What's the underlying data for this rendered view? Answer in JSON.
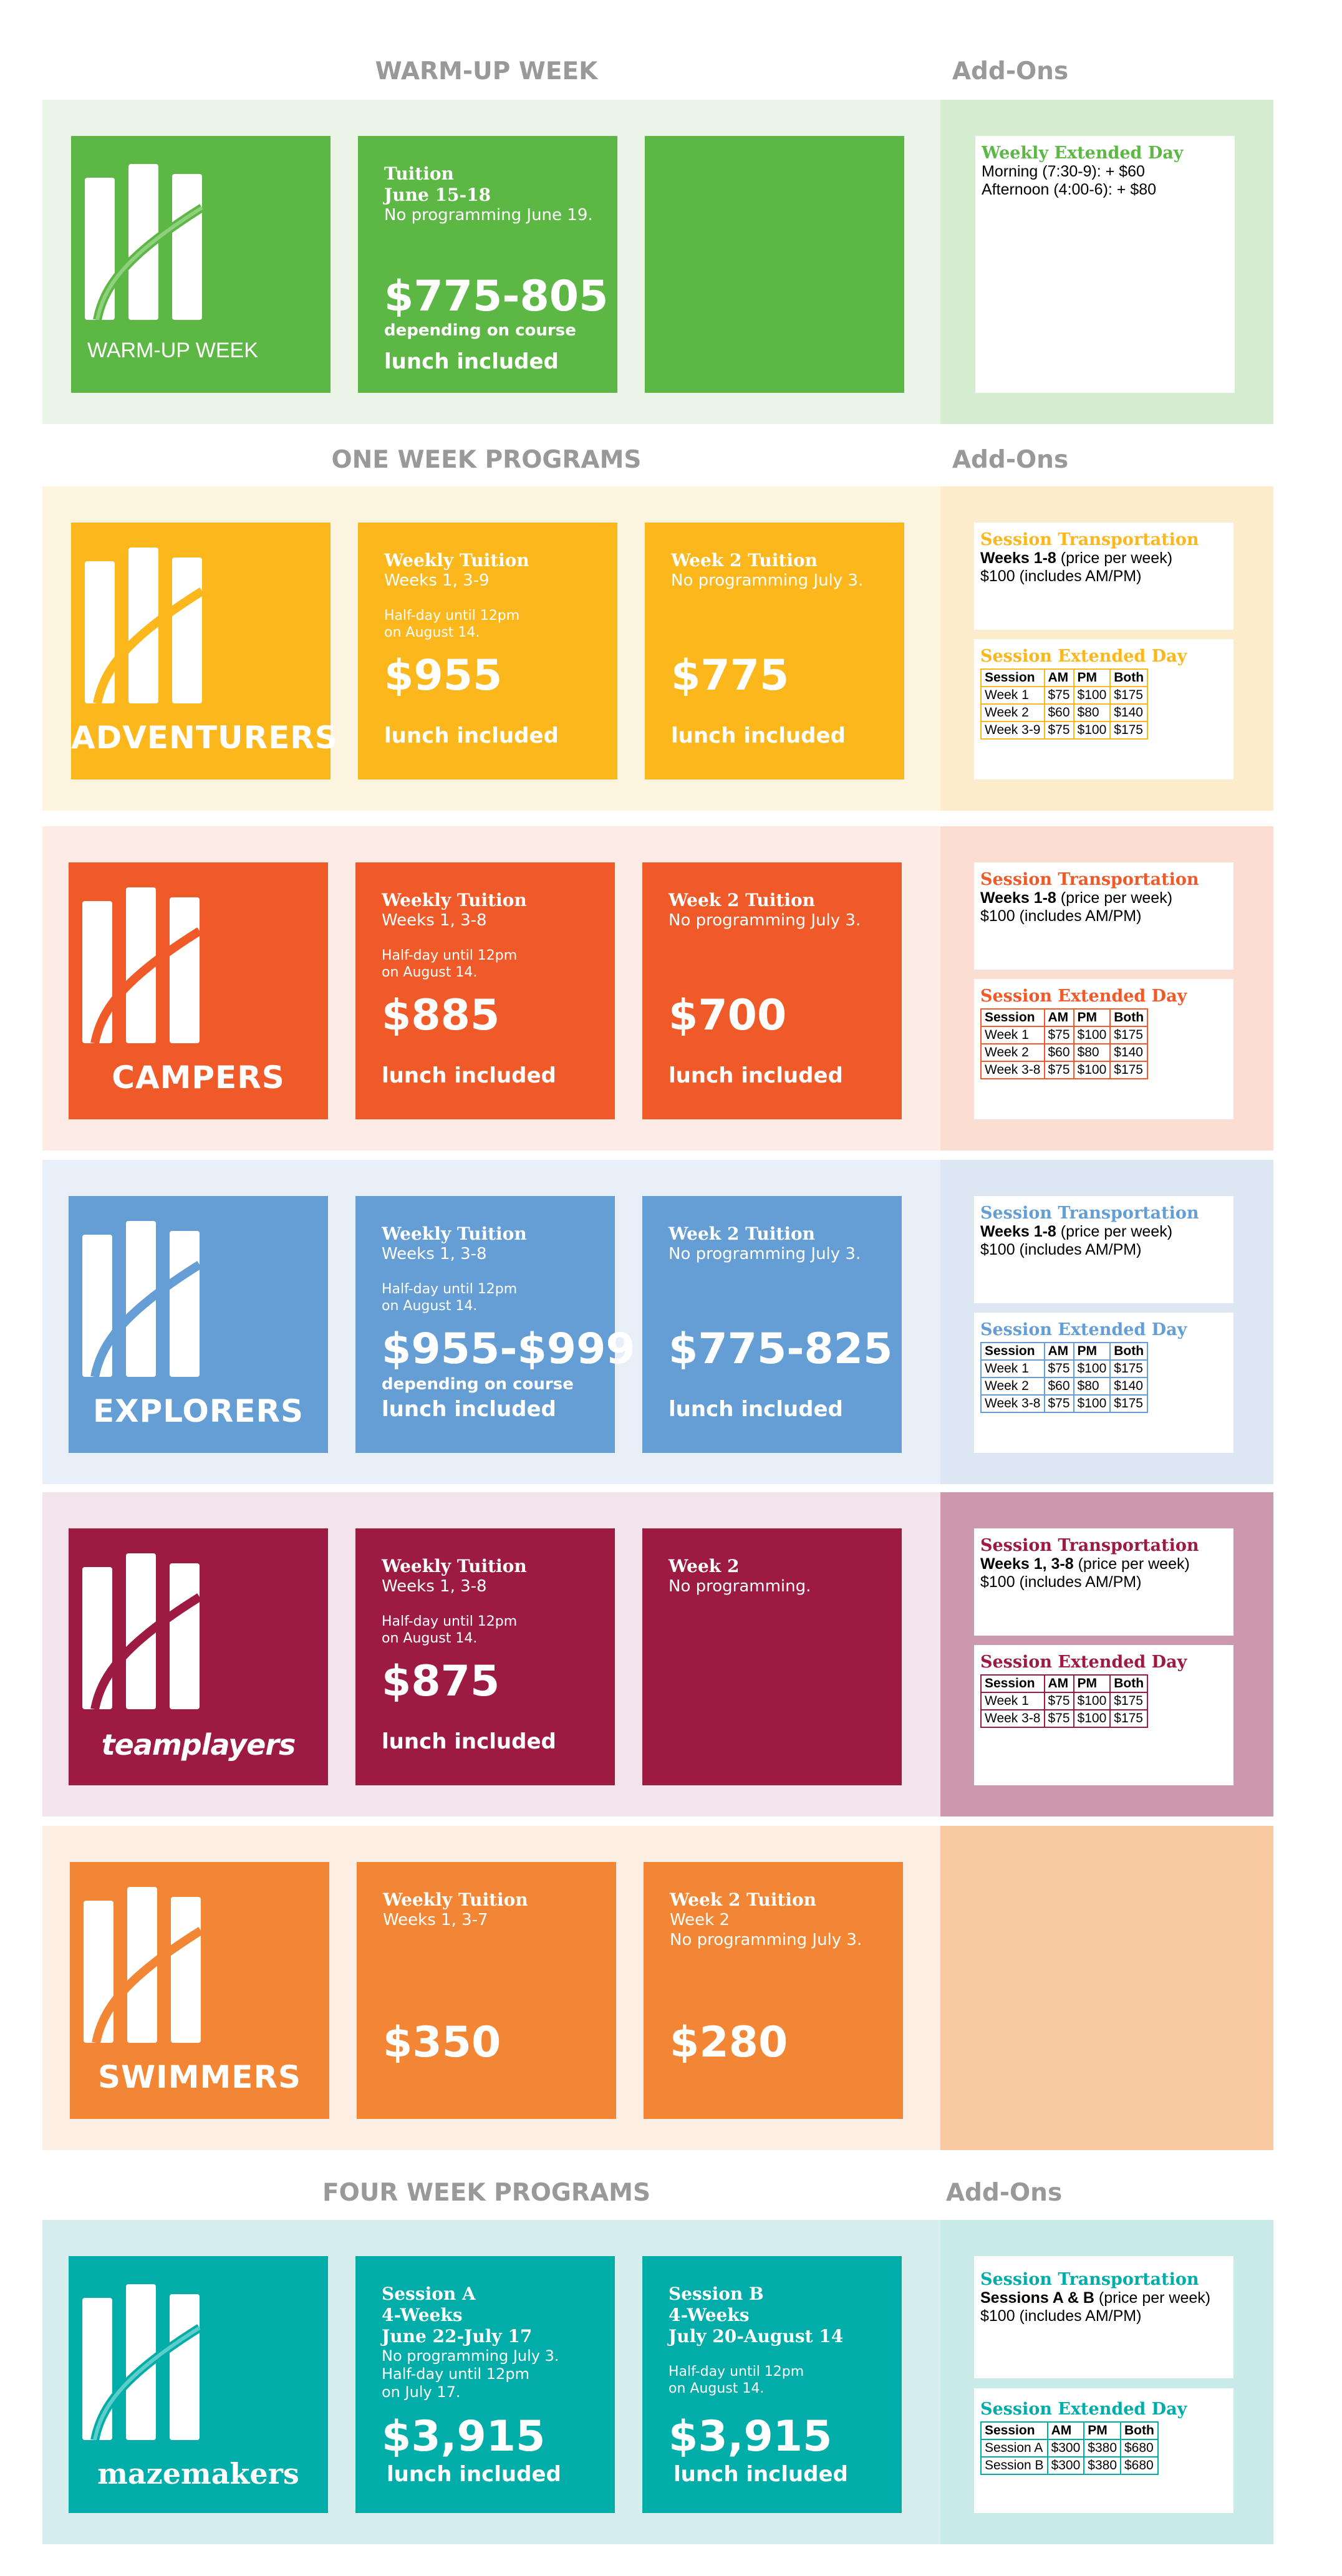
{
  "warmup": {
    "header": "WARM-UP WEEK",
    "addons_header": "Add-Ons",
    "colors": {
      "main": "#5cb745",
      "panel": "#eaf5e7",
      "addon_panel": "#d6ecd1",
      "title": "#5cb745"
    },
    "logo_name": "WARM-UP WEEK",
    "tuition": {
      "label": "Tuition",
      "dates": "June 15-18",
      "note": "No programming June 19.",
      "price": "$775-805",
      "price_note": "depending on course",
      "lunch": "lunch included"
    },
    "card": {
      "title": "Weekly Extended Day",
      "line1": "Morning (7:30-9): + $60",
      "line2": "Afternoon (4:00-6): + $80"
    }
  },
  "one_week": {
    "header": "ONE WEEK PROGRAMS",
    "addons_header": "Add-Ons",
    "programs": [
      {
        "id": "adventurers",
        "logo_name": "ADVENTURERS",
        "colors": {
          "main": "#fbb71b",
          "panel": "#fef5e1",
          "addon_panel": "#fdeccb",
          "title": "#fbb71b"
        },
        "tile1": {
          "label": "Weekly Tuition",
          "weeks": "Weeks 1, 3-9",
          "note1": "Half-day until 12pm",
          "note2": "on August 14.",
          "price": "$955",
          "price_note": "",
          "lunch": "lunch included"
        },
        "tile2": {
          "label": "Week 2 Tuition",
          "sub1": "No programming July 3.",
          "sub2": "",
          "price": "$775",
          "lunch": "lunch included"
        },
        "transport": {
          "title": "Session Transportation",
          "bold": "Weeks 1-8",
          "rest": " (price per week)",
          "line2": "$100 (includes AM/PM)"
        },
        "extended": {
          "title": "Session Extended Day",
          "headers": [
            "Session",
            "AM",
            "PM",
            "Both"
          ],
          "rows": [
            [
              "Week 1",
              "$75",
              "$100",
              "$175"
            ],
            [
              "Week 2",
              "$60",
              "$80",
              "$140"
            ],
            [
              "Week 3-9",
              "$75",
              "$100",
              "$175"
            ]
          ]
        }
      },
      {
        "id": "campers",
        "logo_name": "CAMPERS",
        "colors": {
          "main": "#f05a28",
          "panel": "#fdece6",
          "addon_panel": "#fcddd2",
          "title": "#f05a28"
        },
        "tile1": {
          "label": "Weekly Tuition",
          "weeks": "Weeks 1, 3-8",
          "note1": "Half-day until 12pm",
          "note2": "on August 14.",
          "price": "$885",
          "price_note": "",
          "lunch": "lunch included"
        },
        "tile2": {
          "label": "Week 2 Tuition",
          "sub1": "No programming July 3.",
          "sub2": "",
          "price": "$700",
          "lunch": "lunch included"
        },
        "transport": {
          "title": "Session Transportation",
          "bold": "Weeks 1-8",
          "rest": " (price per week)",
          "line2": "$100 (includes AM/PM)"
        },
        "extended": {
          "title": "Session Extended Day",
          "headers": [
            "Session",
            "AM",
            "PM",
            "Both"
          ],
          "rows": [
            [
              "Week 1",
              "$75",
              "$100",
              "$175"
            ],
            [
              "Week 2",
              "$60",
              "$80",
              "$140"
            ],
            [
              "Week 3-8",
              "$75",
              "$100",
              "$175"
            ]
          ]
        }
      },
      {
        "id": "explorers",
        "logo_name": "EXPLORERS",
        "colors": {
          "main": "#659ed5",
          "panel": "#e8eff8",
          "addon_panel": "#dce7f3",
          "title": "#659ed5"
        },
        "tile1": {
          "label": "Weekly Tuition",
          "weeks": "Weeks 1, 3-8",
          "note1": "Half-day until 12pm",
          "note2": "on August 14.",
          "price": "$955-$999",
          "price_note": "depending on course",
          "lunch": "lunch included"
        },
        "tile2": {
          "label": "Week 2 Tuition",
          "sub1": "No programming July 3.",
          "sub2": "",
          "price": "$775-825",
          "lunch": "lunch included"
        },
        "transport": {
          "title": "Session Transportation",
          "bold": "Weeks 1-8",
          "rest": " (price per week)",
          "line2": "$100 (includes AM/PM)"
        },
        "extended": {
          "title": "Session Extended Day",
          "headers": [
            "Session",
            "AM",
            "PM",
            "Both"
          ],
          "rows": [
            [
              "Week 1",
              "$75",
              "$100",
              "$175"
            ],
            [
              "Week 2",
              "$60",
              "$80",
              "$140"
            ],
            [
              "Week 3-8",
              "$75",
              "$100",
              "$175"
            ]
          ]
        }
      },
      {
        "id": "teamplayers",
        "logo_name": "teamplayers",
        "colors": {
          "main": "#9d1b43",
          "panel": "#f2e4ea",
          "addon_panel": "#cc98ad",
          "title": "#9d1b43"
        },
        "tile1": {
          "label": "Weekly Tuition",
          "weeks": "Weeks 1, 3-8",
          "note1": "Half-day until 12pm",
          "note2": "on August 14.",
          "price": "$875",
          "price_note": "",
          "lunch": "lunch included"
        },
        "tile2": {
          "label": "Week 2",
          "sub1": "No programming.",
          "sub2": "",
          "price": "",
          "lunch": ""
        },
        "transport": {
          "title": "Session Transportation",
          "bold": "Weeks 1, 3-8",
          "rest": " (price per week)",
          "line2": "$100 (includes AM/PM)"
        },
        "extended": {
          "title": "Session Extended Day",
          "headers": [
            "Session",
            "AM",
            "PM",
            "Both"
          ],
          "rows": [
            [
              "Week 1",
              "$75",
              "$100",
              "$175"
            ],
            [
              "Week 3-8",
              "$75",
              "$100",
              "$175"
            ]
          ]
        }
      },
      {
        "id": "swimmers",
        "logo_name": "SWIMMERS",
        "colors": {
          "main": "#f28634",
          "panel": "#fdeee4",
          "addon_panel": "#f9c9a2",
          "title": "#f28634"
        },
        "tile1": {
          "label": "Weekly Tuition",
          "weeks": "Weeks 1, 3-7",
          "note1": "",
          "note2": "",
          "price": "$350",
          "price_note": "",
          "lunch": ""
        },
        "tile2": {
          "label": "Week 2 Tuition",
          "sub1": "Week 2",
          "sub2": "No programming July 3.",
          "price": "$280",
          "lunch": ""
        }
      }
    ]
  },
  "four_week": {
    "header": "FOUR WEEK PROGRAMS",
    "addons_header": "Add-Ons",
    "logo_name": "mazemakers",
    "colors": {
      "main": "#00ada8",
      "panel": "#d6efee",
      "addon_panel": "#c8ebea",
      "title": "#00ada8"
    },
    "tileA": {
      "label": "Session A",
      "sub": "4-Weeks",
      "dates": "June 22-July 17",
      "note1": "No programming July 3.",
      "note2": "Half-day until 12pm",
      "note3": "on July 17.",
      "price": "$3,915",
      "lunch": "lunch included"
    },
    "tileB": {
      "label": "Session B",
      "sub": "4-Weeks",
      "dates": "July 20-August 14",
      "note1": "Half-day until 12pm",
      "note2": "on August 14.",
      "price": "$3,915",
      "lunch": "lunch included"
    },
    "transport": {
      "title": "Session Transportation",
      "bold": "Sessions A & B",
      "rest": " (price per week)",
      "line2": "$100 (includes AM/PM)"
    },
    "extended": {
      "title": "Session Extended Day",
      "headers": [
        "Session",
        "AM",
        "PM",
        "Both"
      ],
      "rows": [
        [
          "Session A",
          "$300",
          "$380",
          "$680"
        ],
        [
          "Session B",
          "$300",
          "$380",
          "$680"
        ]
      ]
    }
  }
}
